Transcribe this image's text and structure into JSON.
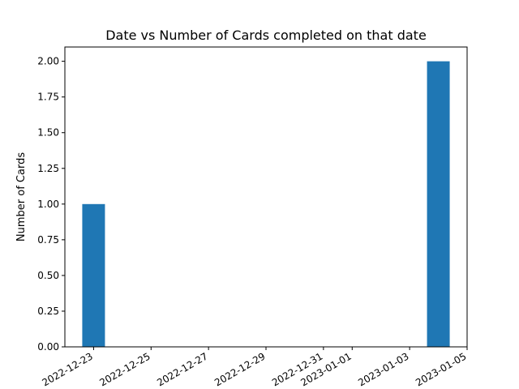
{
  "chart_data": {
    "type": "bar",
    "title": "Date vs Number of Cards completed on that date",
    "xlabel": "",
    "ylabel": "Number of Cards",
    "x": [
      "2022-12-23",
      "2023-01-04"
    ],
    "values": [
      1,
      2
    ],
    "x_ticks": [
      "2022-12-23",
      "2022-12-25",
      "2022-12-27",
      "2022-12-29",
      "2022-12-31",
      "2023-01-01",
      "2023-01-03",
      "2023-01-05"
    ],
    "y_ticks": [
      "0.00",
      "0.25",
      "0.50",
      "0.75",
      "1.00",
      "1.25",
      "1.50",
      "1.75",
      "2.00"
    ],
    "ylim": [
      0,
      2.1
    ],
    "xlim": [
      "2022-12-22",
      "2023-01-05"
    ],
    "bar_color": "#1f77b4",
    "grid": false
  }
}
